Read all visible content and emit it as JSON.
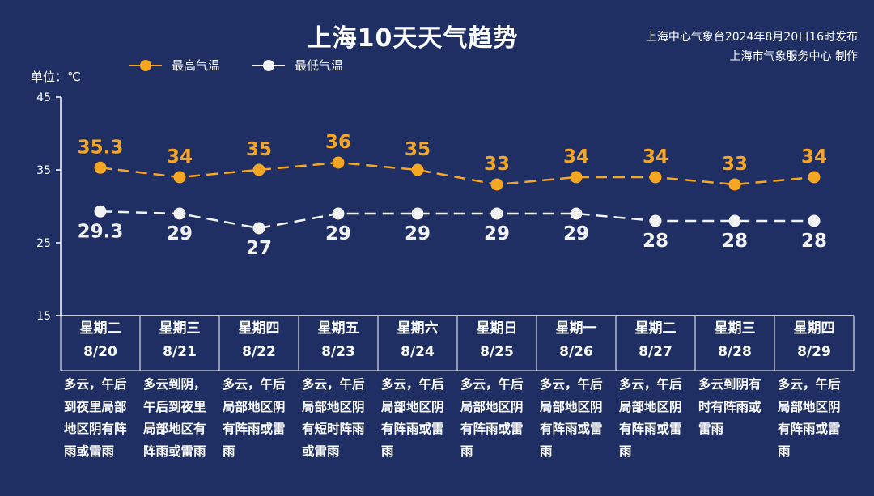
{
  "header": {
    "title": "上海10天天气趋势",
    "source_line1": "上海中心气象台2024年8月20日16时发布",
    "source_line2": "上海市气象服务中心 制作"
  },
  "unit_label": "单位：℃",
  "colors": {
    "high": "#f5a623",
    "low": "#f2f2f2",
    "background": "#1f2f63",
    "axis": "#ffffff"
  },
  "chart_data": {
    "type": "line",
    "yunit": "℃",
    "ylim": [
      15,
      45
    ],
    "yticks": [
      15,
      25,
      35,
      45
    ],
    "grid": false,
    "legend_position": "top-left",
    "categories": [
      "8/20",
      "8/21",
      "8/22",
      "8/23",
      "8/24",
      "8/25",
      "8/26",
      "8/27",
      "8/28",
      "8/29"
    ],
    "series": [
      {
        "name": "最高气温",
        "values": [
          35.3,
          34,
          35,
          36,
          35,
          33,
          34,
          34,
          33,
          34
        ],
        "labels": [
          "35.3",
          "34",
          "35",
          "36",
          "35",
          "33",
          "34",
          "34",
          "33",
          "34"
        ]
      },
      {
        "name": "最低气温",
        "values": [
          29.3,
          29,
          27,
          29,
          29,
          29,
          29,
          28,
          28,
          28
        ],
        "labels": [
          "29.3",
          "29",
          "27",
          "29",
          "29",
          "29",
          "29",
          "28",
          "28",
          "28"
        ]
      }
    ]
  },
  "days": [
    {
      "weekday": "星期二",
      "date": "8/20",
      "weather": "多云，午后到夜里局部地区阴有阵雨或雷雨"
    },
    {
      "weekday": "星期三",
      "date": "8/21",
      "weather": "多云到阴，午后到夜里局部地区有阵雨或雷雨"
    },
    {
      "weekday": "星期四",
      "date": "8/22",
      "weather": "多云，午后局部地区阴有阵雨或雷雨"
    },
    {
      "weekday": "星期五",
      "date": "8/23",
      "weather": "多云，午后局部地区阴有短时阵雨或雷雨"
    },
    {
      "weekday": "星期六",
      "date": "8/24",
      "weather": "多云，午后局部地区阴有阵雨或雷雨"
    },
    {
      "weekday": "星期日",
      "date": "8/25",
      "weather": "多云，午后局部地区阴有阵雨或雷雨"
    },
    {
      "weekday": "星期一",
      "date": "8/26",
      "weather": "多云，午后局部地区阴有阵雨或雷雨"
    },
    {
      "weekday": "星期二",
      "date": "8/27",
      "weather": "多云，午后局部地区阴有阵雨或雷雨"
    },
    {
      "weekday": "星期三",
      "date": "8/28",
      "weather": "多云到阴有时有阵雨或雷雨"
    },
    {
      "weekday": "星期四",
      "date": "8/29",
      "weather": "多云，午后局部地区阴有阵雨或雷雨"
    }
  ]
}
